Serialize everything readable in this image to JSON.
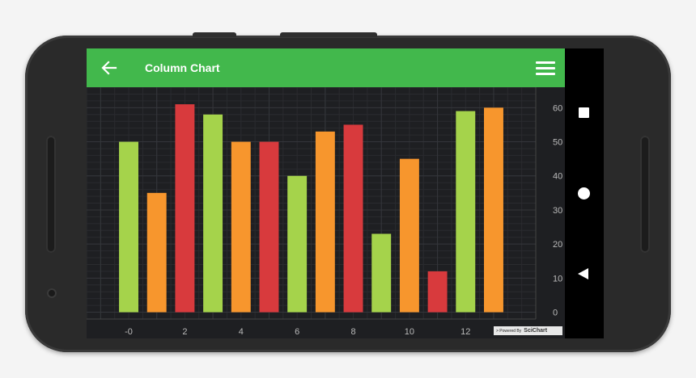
{
  "appbar": {
    "title": "Column Chart",
    "back_icon": "arrow-left-icon",
    "menu_icon": "hamburger-menu-icon",
    "color": "#42b84c"
  },
  "navbar": {
    "recent_icon": "square-icon",
    "home_icon": "circle-icon",
    "back_icon": "triangle-back-icon"
  },
  "watermark": {
    "prefix": "> Powered By",
    "brand": "SciChart"
  },
  "chart_data": {
    "type": "bar",
    "title": "",
    "xlabel": "",
    "ylabel": "",
    "x": [
      0,
      1,
      2,
      3,
      4,
      5,
      6,
      7,
      8,
      9,
      10,
      11,
      12,
      13
    ],
    "values": [
      50,
      35,
      61,
      58,
      50,
      50,
      40,
      53,
      55,
      23,
      45,
      12,
      59,
      60
    ],
    "colors": [
      "#a5d34b",
      "#f7962d",
      "#d83a3d",
      "#a5d34b",
      "#f7962d",
      "#d83a3d",
      "#a5d34b",
      "#f7962d",
      "#d83a3d",
      "#a5d34b",
      "#f7962d",
      "#d83a3d",
      "#a5d34b",
      "#f7962d"
    ],
    "xlim": [
      -1.5,
      14.5
    ],
    "ylim": [
      -2,
      66
    ],
    "x_ticks": [
      0,
      2,
      4,
      6,
      8,
      10,
      12
    ],
    "x_tick_labels": [
      "-0",
      "2",
      "4",
      "6",
      "8",
      "10",
      "12"
    ],
    "y_ticks": [
      0,
      10,
      20,
      30,
      40,
      50,
      60
    ],
    "y_tick_labels": [
      "0",
      "10",
      "20",
      "30",
      "40",
      "50",
      "60"
    ],
    "y_axis_position": "right",
    "grid": true,
    "background": "#1e1f22"
  }
}
